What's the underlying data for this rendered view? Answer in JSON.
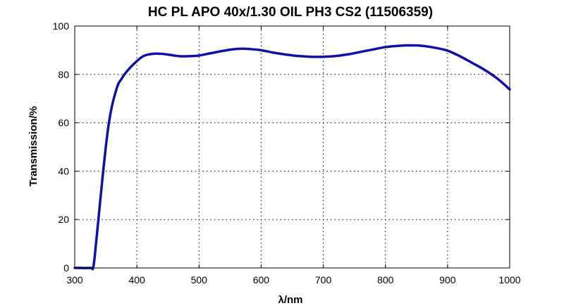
{
  "chart_data": {
    "type": "line",
    "title": "HC PL APO 40x/1.30 OIL PH3 CS2 (11506359)",
    "xlabel": "λ/nm",
    "ylabel": "Transmission/%",
    "xlim": [
      300,
      1000
    ],
    "ylim": [
      0,
      100
    ],
    "xticks": [
      300,
      400,
      500,
      600,
      700,
      800,
      900,
      1000
    ],
    "yticks": [
      0,
      20,
      40,
      60,
      80,
      100
    ],
    "grid": true,
    "series": [
      {
        "color": "#1010a8",
        "x": [
          300,
          325,
          330,
          335,
          340,
          345,
          350,
          355,
          360,
          365,
          370,
          375,
          380,
          390,
          400,
          410,
          420,
          430,
          440,
          450,
          460,
          470,
          480,
          490,
          500,
          520,
          540,
          560,
          575,
          590,
          600,
          620,
          640,
          660,
          680,
          700,
          720,
          740,
          760,
          780,
          800,
          820,
          840,
          860,
          880,
          900,
          920,
          940,
          960,
          980,
          1000
        ],
        "y": [
          0,
          0,
          0.5,
          12,
          25,
          38,
          50,
          60,
          67,
          72,
          76,
          78,
          80,
          83,
          85.5,
          87.5,
          88.3,
          88.6,
          88.5,
          88.2,
          87.8,
          87.5,
          87.5,
          87.6,
          87.8,
          88.8,
          89.8,
          90.5,
          90.6,
          90.3,
          90.0,
          89.0,
          88.2,
          87.6,
          87.3,
          87.3,
          87.6,
          88.3,
          89.3,
          90.3,
          91.3,
          91.8,
          92.0,
          91.8,
          91.0,
          89.8,
          87.5,
          84.7,
          81.8,
          78.3,
          73.8
        ]
      }
    ]
  }
}
